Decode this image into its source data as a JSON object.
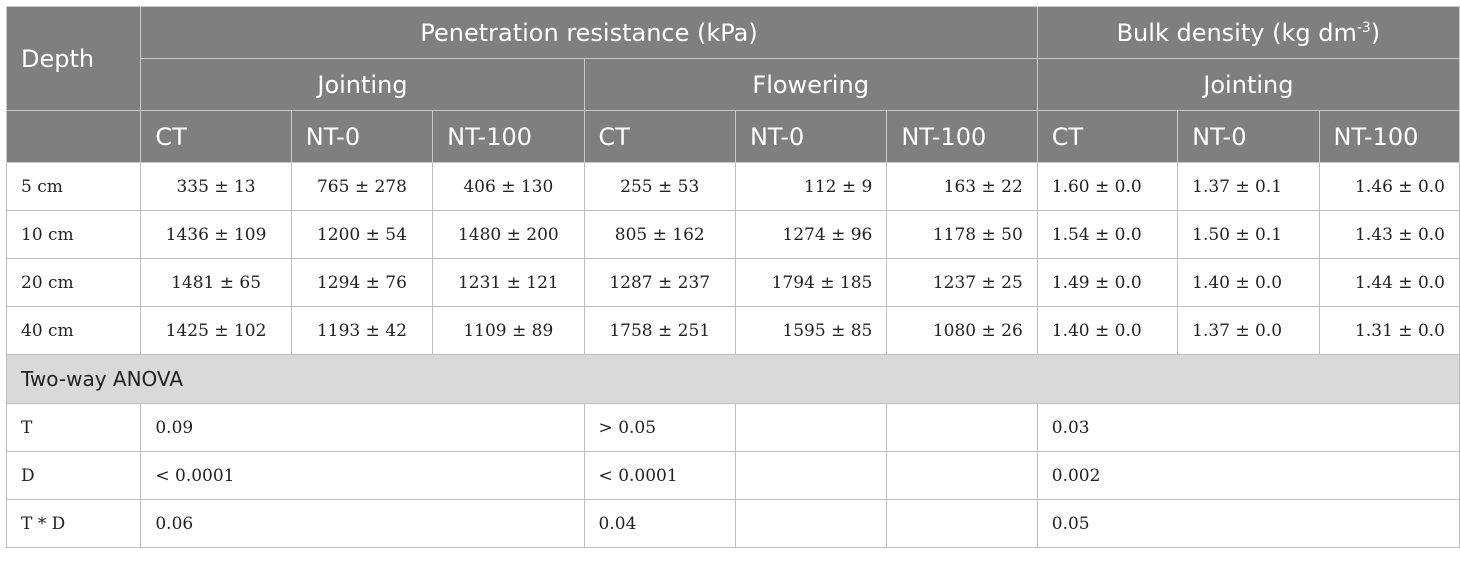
{
  "header": {
    "depth": "Depth",
    "penetration_title": "Penetration resistance (kPa)",
    "bulk_title_main": "Bulk density (kg dm",
    "bulk_title_exp": "-3",
    "bulk_title_end": ")",
    "jointing": "Jointing",
    "flowering": "Flowering",
    "jointing_bulk": "Jointing",
    "treatments": [
      "CT",
      "NT-0",
      "NT-100",
      "CT",
      "NT-0",
      "NT-100",
      "CT",
      "NT-0",
      "NT-100"
    ]
  },
  "rows": [
    {
      "depth": "5 cm",
      "values": [
        "335 ± 13",
        "765 ± 278",
        "406 ± 130",
        "255 ± 53",
        "112 ± 9",
        "163 ± 22",
        "1.60 ± 0.0",
        "1.37 ± 0.1",
        "1.46 ± 0.0"
      ]
    },
    {
      "depth": "10 cm",
      "values": [
        "1436 ± 109",
        "1200 ± 54",
        "1480 ± 200",
        "805 ± 162",
        "1274 ± 96",
        "1178 ± 50",
        "1.54 ± 0.0",
        "1.50 ± 0.1",
        "1.43 ± 0.0"
      ]
    },
    {
      "depth": "20 cm",
      "values": [
        "1481 ± 65",
        "1294 ± 76",
        "1231 ± 121",
        "1287 ± 237",
        "1794 ± 185",
        "1237 ± 25",
        "1.49 ± 0.0",
        "1.40 ± 0.0",
        "1.44 ± 0.0"
      ]
    },
    {
      "depth": "40 cm",
      "values": [
        "1425 ± 102",
        "1193 ± 42",
        "1109 ± 89",
        "1758 ± 251",
        "1595 ± 85",
        "1080 ± 26",
        "1.40 ± 0.0",
        "1.37 ± 0.0",
        "1.31 ± 0.0"
      ]
    }
  ],
  "anova": {
    "title": "Two-way ANOVA",
    "rows": [
      {
        "label": "T",
        "penetration_jointing": "0.09",
        "penetration_flowering": "> 0.05",
        "bulk": "0.03"
      },
      {
        "label": "D",
        "penetration_jointing": "< 0.0001",
        "penetration_flowering": "< 0.0001",
        "bulk": "0.002"
      },
      {
        "label": "T * D",
        "penetration_jointing": "0.06",
        "penetration_flowering": "0.04",
        "bulk": "0.05"
      }
    ]
  }
}
